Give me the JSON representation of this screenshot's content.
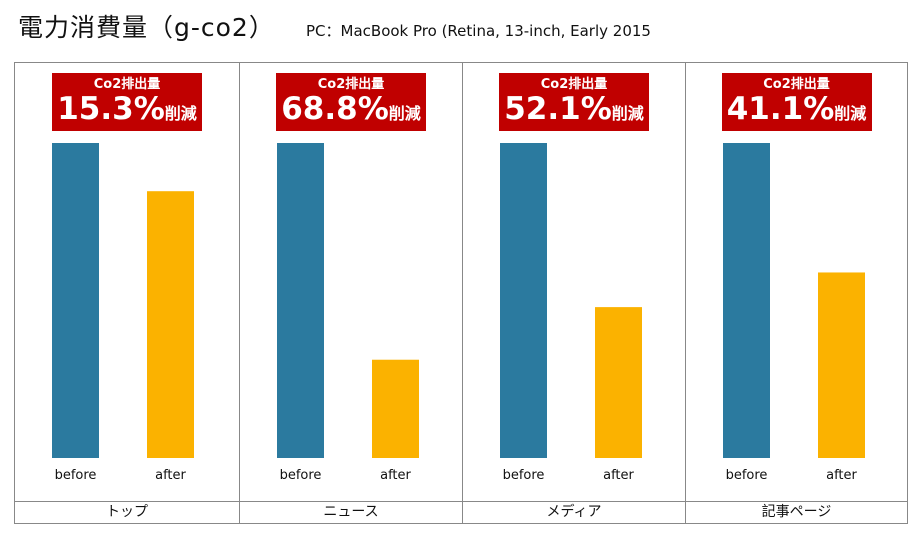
{
  "header": {
    "title": "電力消費量（g-co2）",
    "subtitle": "PC：MacBook Pro (Retina, 13-inch, Early 2015"
  },
  "colors": {
    "before": "#2b7a9f",
    "after": "#fbb200",
    "badge": "#c00000",
    "border": "#888888"
  },
  "chart_data": {
    "type": "bar",
    "title": "電力消費量（g-co2）",
    "subtitle": "PC：MacBook Pro (Retina, 13-inch, Early 2015",
    "xlabel": "",
    "ylabel": "",
    "legend": "none",
    "grid": false,
    "series_labels": [
      "before",
      "after"
    ],
    "panels": [
      {
        "category": "トップ",
        "badge_label": "Co2排出量",
        "badge_value": "15.3%",
        "badge_suffix": "削減",
        "values": [
          100,
          84.7
        ]
      },
      {
        "category": "ニュース",
        "badge_label": "Co2排出量",
        "badge_value": "68.8%",
        "badge_suffix": "削減",
        "values": [
          100,
          31.2
        ]
      },
      {
        "category": "メディア",
        "badge_label": "Co2排出量",
        "badge_value": "52.1%",
        "badge_suffix": "削減",
        "values": [
          100,
          47.9
        ]
      },
      {
        "category": "記事ページ",
        "badge_label": "Co2排出量",
        "badge_value": "41.1%",
        "badge_suffix": "削減",
        "values": [
          100,
          58.9
        ]
      }
    ]
  }
}
